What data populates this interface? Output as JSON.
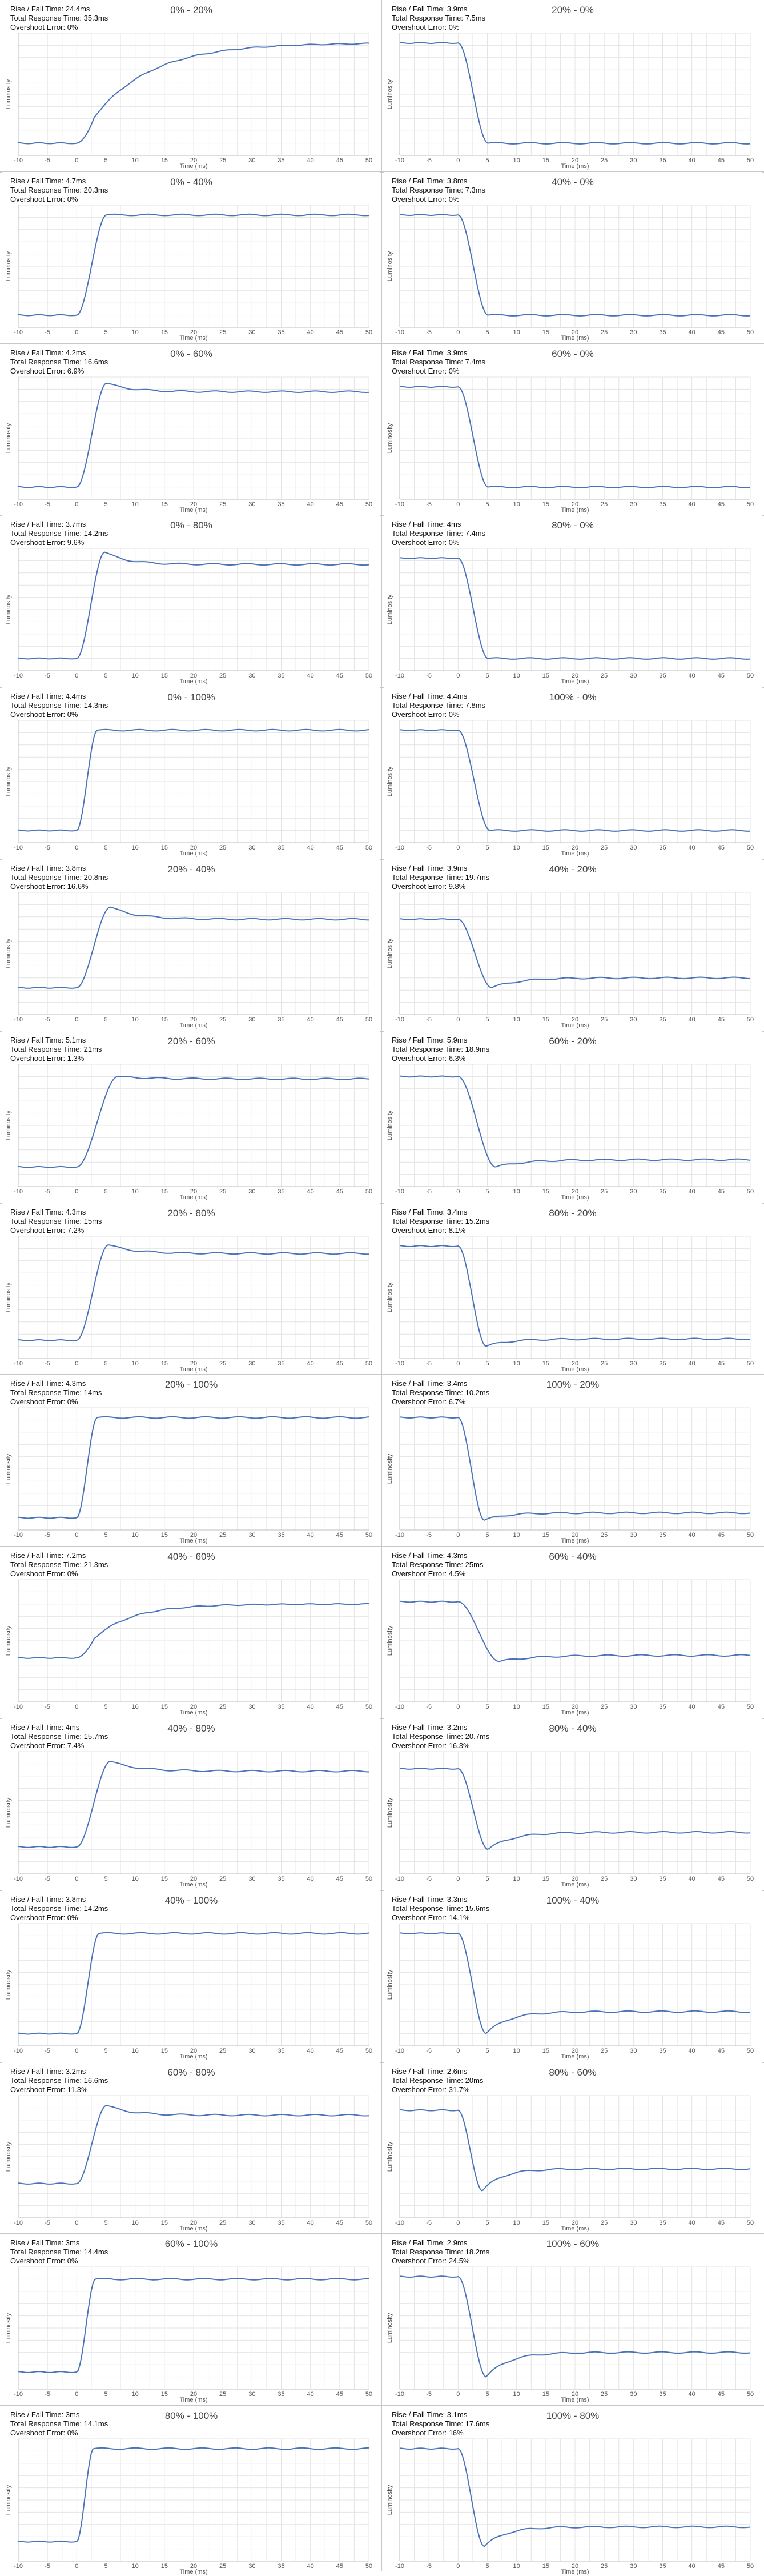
{
  "chart_data": [
    {
      "type": "line",
      "title": "0% - 20%",
      "rise_fall": "Rise / Fall Time: 24.4ms",
      "total": "Total Response Time: 35.3ms",
      "overshoot": "Overshoot Error: 0%",
      "xlabel": "Time (ms)",
      "ylabel": "Luminosity",
      "xlim": [
        -10,
        50
      ],
      "xticks": [
        -10,
        -5,
        0,
        5,
        10,
        15,
        20,
        25,
        30,
        35,
        40,
        45,
        50
      ],
      "ylim": [
        0,
        1
      ],
      "from": 0.1,
      "to": 0.92,
      "peak": 0.92,
      "shape": "slow",
      "tau": 4.5
    },
    {
      "type": "line",
      "title": "20% - 0%",
      "rise_fall": "Rise / Fall Time: 3.9ms",
      "total": "Total Response Time: 7.5ms",
      "overshoot": "Overshoot Error: 0%",
      "xlabel": "Time (ms)",
      "ylabel": "Luminosity",
      "xlim": [
        -10,
        50
      ],
      "xticks": [
        -10,
        -5,
        0,
        5,
        10,
        15,
        20,
        25,
        30,
        35,
        40,
        45,
        50
      ],
      "ylim": [
        0,
        1
      ],
      "from": 0.92,
      "to": 0.1,
      "peak": 0.1,
      "shape": "fall",
      "tau": 1.6
    },
    {
      "type": "line",
      "title": "0% - 40%",
      "rise_fall": "Rise / Fall Time: 4.7ms",
      "total": "Total Response Time: 20.3ms",
      "overshoot": "Overshoot Error: 0%",
      "xlabel": "Time (ms)",
      "ylabel": "Luminosity",
      "xlim": [
        -10,
        50
      ],
      "xticks": [
        -10,
        -5,
        0,
        5,
        10,
        15,
        20,
        25,
        30,
        35,
        40,
        45,
        50
      ],
      "ylim": [
        0,
        1
      ],
      "from": 0.1,
      "to": 0.92,
      "peak": 0.92,
      "shape": "rise",
      "tau": 1.6
    },
    {
      "type": "line",
      "title": "40% - 0%",
      "rise_fall": "Rise / Fall Time: 3.8ms",
      "total": "Total Response Time: 7.3ms",
      "overshoot": "Overshoot Error: 0%",
      "xlabel": "Time (ms)",
      "ylabel": "Luminosity",
      "xlim": [
        -10,
        50
      ],
      "xticks": [
        -10,
        -5,
        0,
        5,
        10,
        15,
        20,
        25,
        30,
        35,
        40,
        45,
        50
      ],
      "ylim": [
        0,
        1
      ],
      "from": 0.92,
      "to": 0.1,
      "peak": 0.1,
      "shape": "fall",
      "tau": 1.6
    },
    {
      "type": "line",
      "title": "0% - 60%",
      "rise_fall": "Rise / Fall Time: 4.2ms",
      "total": "Total Response Time: 16.6ms",
      "overshoot": "Overshoot Error: 6.9%",
      "xlabel": "Time (ms)",
      "ylabel": "Luminosity",
      "xlim": [
        -10,
        50
      ],
      "xticks": [
        -10,
        -5,
        0,
        5,
        10,
        15,
        20,
        25,
        30,
        35,
        40,
        45,
        50
      ],
      "ylim": [
        0,
        1
      ],
      "from": 0.1,
      "to": 0.88,
      "peak": 0.95,
      "shape": "rise",
      "tau": 1.6
    },
    {
      "type": "line",
      "title": "60% - 0%",
      "rise_fall": "Rise / Fall Time: 3.9ms",
      "total": "Total Response Time: 7.4ms",
      "overshoot": "Overshoot Error: 0%",
      "xlabel": "Time (ms)",
      "ylabel": "Luminosity",
      "xlim": [
        -10,
        50
      ],
      "xticks": [
        -10,
        -5,
        0,
        5,
        10,
        15,
        20,
        25,
        30,
        35,
        40,
        45,
        50
      ],
      "ylim": [
        0,
        1
      ],
      "from": 0.92,
      "to": 0.1,
      "peak": 0.1,
      "shape": "fall",
      "tau": 1.6
    },
    {
      "type": "line",
      "title": "0% - 80%",
      "rise_fall": "Rise / Fall Time: 3.7ms",
      "total": "Total Response Time: 14.2ms",
      "overshoot": "Overshoot Error: 9.6%",
      "xlabel": "Time (ms)",
      "ylabel": "Luminosity",
      "xlim": [
        -10,
        50
      ],
      "xticks": [
        -10,
        -5,
        0,
        5,
        10,
        15,
        20,
        25,
        30,
        35,
        40,
        45,
        50
      ],
      "ylim": [
        0,
        1
      ],
      "from": 0.1,
      "to": 0.87,
      "peak": 0.97,
      "shape": "rise",
      "tau": 1.5
    },
    {
      "type": "line",
      "title": "80% - 0%",
      "rise_fall": "Rise / Fall Time: 4ms",
      "total": "Total Response Time: 7.4ms",
      "overshoot": "Overshoot Error: 0%",
      "xlabel": "Time (ms)",
      "ylabel": "Luminosity",
      "xlim": [
        -10,
        50
      ],
      "xticks": [
        -10,
        -5,
        0,
        5,
        10,
        15,
        20,
        25,
        30,
        35,
        40,
        45,
        50
      ],
      "ylim": [
        0,
        1
      ],
      "from": 0.92,
      "to": 0.1,
      "peak": 0.1,
      "shape": "fall",
      "tau": 1.6
    },
    {
      "type": "line",
      "title": "0% - 100%",
      "rise_fall": "Rise / Fall Time: 4.4ms",
      "total": "Total Response Time: 14.3ms",
      "overshoot": "Overshoot Error: 0%",
      "xlabel": "Time (ms)",
      "ylabel": "Luminosity",
      "xlim": [
        -10,
        50
      ],
      "xticks": [
        -10,
        -5,
        0,
        5,
        10,
        15,
        20,
        25,
        30,
        35,
        40,
        45,
        50
      ],
      "ylim": [
        0,
        1
      ],
      "from": 0.1,
      "to": 0.92,
      "peak": 0.92,
      "shape": "rise",
      "tau": 1.1
    },
    {
      "type": "line",
      "title": "100% - 0%",
      "rise_fall": "Rise / Fall Time: 4.4ms",
      "total": "Total Response Time: 7.8ms",
      "overshoot": "Overshoot Error: 0%",
      "xlabel": "Time (ms)",
      "ylabel": "Luminosity",
      "xlim": [
        -10,
        50
      ],
      "xticks": [
        -10,
        -5,
        0,
        5,
        10,
        15,
        20,
        25,
        30,
        35,
        40,
        45,
        50
      ],
      "ylim": [
        0,
        1
      ],
      "from": 0.92,
      "to": 0.1,
      "peak": 0.1,
      "shape": "fall",
      "tau": 1.7
    },
    {
      "type": "line",
      "title": "20% - 40%",
      "rise_fall": "Rise / Fall Time: 3.8ms",
      "total": "Total Response Time: 20.8ms",
      "overshoot": "Overshoot Error: 16.6%",
      "xlabel": "Time (ms)",
      "ylabel": "Luminosity",
      "xlim": [
        -10,
        50
      ],
      "xticks": [
        -10,
        -5,
        0,
        5,
        10,
        15,
        20,
        25,
        30,
        35,
        40,
        45,
        50
      ],
      "ylim": [
        0,
        1
      ],
      "from": 0.22,
      "to": 0.78,
      "peak": 0.88,
      "shape": "rise",
      "tau": 1.8
    },
    {
      "type": "line",
      "title": "40% - 20%",
      "rise_fall": "Rise / Fall Time: 3.9ms",
      "total": "Total Response Time: 19.7ms",
      "overshoot": "Overshoot Error: 9.8%",
      "xlabel": "Time (ms)",
      "ylabel": "Luminosity",
      "xlim": [
        -10,
        50
      ],
      "xticks": [
        -10,
        -5,
        0,
        5,
        10,
        15,
        20,
        25,
        30,
        35,
        40,
        45,
        50
      ],
      "ylim": [
        0,
        1
      ],
      "from": 0.78,
      "to": 0.3,
      "peak": 0.22,
      "shape": "fall",
      "tau": 1.8
    },
    {
      "type": "line",
      "title": "20% - 60%",
      "rise_fall": "Rise / Fall Time: 5.1ms",
      "total": "Total Response Time: 21ms",
      "overshoot": "Overshoot Error: 1.3%",
      "xlabel": "Time (ms)",
      "ylabel": "Luminosity",
      "xlim": [
        -10,
        50
      ],
      "xticks": [
        -10,
        -5,
        0,
        5,
        10,
        15,
        20,
        25,
        30,
        35,
        40,
        45,
        50
      ],
      "ylim": [
        0,
        1
      ],
      "from": 0.16,
      "to": 0.88,
      "peak": 0.9,
      "shape": "rise",
      "tau": 2.2
    },
    {
      "type": "line",
      "title": "60% - 20%",
      "rise_fall": "Rise / Fall Time: 5.9ms",
      "total": "Total Response Time: 18.9ms",
      "overshoot": "Overshoot Error: 6.3%",
      "xlabel": "Time (ms)",
      "ylabel": "Luminosity",
      "xlim": [
        -10,
        50
      ],
      "xticks": [
        -10,
        -5,
        0,
        5,
        10,
        15,
        20,
        25,
        30,
        35,
        40,
        45,
        50
      ],
      "ylim": [
        0,
        1
      ],
      "from": 0.9,
      "to": 0.22,
      "peak": 0.16,
      "shape": "fall",
      "tau": 2.0
    },
    {
      "type": "line",
      "title": "20% - 80%",
      "rise_fall": "Rise / Fall Time: 4.3ms",
      "total": "Total Response Time: 15ms",
      "overshoot": "Overshoot Error: 7.2%",
      "xlabel": "Time (ms)",
      "ylabel": "Luminosity",
      "xlim": [
        -10,
        50
      ],
      "xticks": [
        -10,
        -5,
        0,
        5,
        10,
        15,
        20,
        25,
        30,
        35,
        40,
        45,
        50
      ],
      "ylim": [
        0,
        1
      ],
      "from": 0.15,
      "to": 0.86,
      "peak": 0.93,
      "shape": "rise",
      "tau": 1.7
    },
    {
      "type": "line",
      "title": "80% - 20%",
      "rise_fall": "Rise / Fall Time: 3.4ms",
      "total": "Total Response Time: 15.2ms",
      "overshoot": "Overshoot Error: 8.1%",
      "xlabel": "Time (ms)",
      "ylabel": "Luminosity",
      "xlim": [
        -10,
        50
      ],
      "xticks": [
        -10,
        -5,
        0,
        5,
        10,
        15,
        20,
        25,
        30,
        35,
        40,
        45,
        50
      ],
      "ylim": [
        0,
        1
      ],
      "from": 0.92,
      "to": 0.16,
      "peak": 0.1,
      "shape": "fall",
      "tau": 1.5
    },
    {
      "type": "line",
      "title": "20% - 100%",
      "rise_fall": "Rise / Fall Time: 4.3ms",
      "total": "Total Response Time: 14ms",
      "overshoot": "Overshoot Error: 0%",
      "xlabel": "Time (ms)",
      "ylabel": "Luminosity",
      "xlim": [
        -10,
        50
      ],
      "xticks": [
        -10,
        -5,
        0,
        5,
        10,
        15,
        20,
        25,
        30,
        35,
        40,
        45,
        50
      ],
      "ylim": [
        0,
        1
      ],
      "from": 0.1,
      "to": 0.92,
      "peak": 0.92,
      "shape": "rise",
      "tau": 1.1
    },
    {
      "type": "line",
      "title": "100% - 20%",
      "rise_fall": "Rise / Fall Time: 3.4ms",
      "total": "Total Response Time: 10.2ms",
      "overshoot": "Overshoot Error: 6.7%",
      "xlabel": "Time (ms)",
      "ylabel": "Luminosity",
      "xlim": [
        -10,
        50
      ],
      "xticks": [
        -10,
        -5,
        0,
        5,
        10,
        15,
        20,
        25,
        30,
        35,
        40,
        45,
        50
      ],
      "ylim": [
        0,
        1
      ],
      "from": 0.92,
      "to": 0.14,
      "peak": 0.08,
      "shape": "fall",
      "tau": 1.4
    },
    {
      "type": "line",
      "title": "40% - 60%",
      "rise_fall": "Rise / Fall Time: 7.2ms",
      "total": "Total Response Time: 21.3ms",
      "overshoot": "Overshoot Error: 0%",
      "xlabel": "Time (ms)",
      "ylabel": "Luminosity",
      "xlim": [
        -10,
        50
      ],
      "xticks": [
        -10,
        -5,
        0,
        5,
        10,
        15,
        20,
        25,
        30,
        35,
        40,
        45,
        50
      ],
      "ylim": [
        0,
        1
      ],
      "from": 0.36,
      "to": 0.8,
      "peak": 0.8,
      "shape": "slow",
      "tau": 3.0
    },
    {
      "type": "line",
      "title": "60% - 40%",
      "rise_fall": "Rise / Fall Time: 4.3ms",
      "total": "Total Response Time: 25ms",
      "overshoot": "Overshoot Error: 4.5%",
      "xlabel": "Time (ms)",
      "ylabel": "Luminosity",
      "xlim": [
        -10,
        50
      ],
      "xticks": [
        -10,
        -5,
        0,
        5,
        10,
        15,
        20,
        25,
        30,
        35,
        40,
        45,
        50
      ],
      "ylim": [
        0,
        1
      ],
      "from": 0.82,
      "to": 0.38,
      "peak": 0.33,
      "shape": "fall",
      "tau": 2.2
    },
    {
      "type": "line",
      "title": "40% - 80%",
      "rise_fall": "Rise / Fall Time: 4ms",
      "total": "Total Response Time: 15.7ms",
      "overshoot": "Overshoot Error: 7.4%",
      "xlabel": "Time (ms)",
      "ylabel": "Luminosity",
      "xlim": [
        -10,
        50
      ],
      "xticks": [
        -10,
        -5,
        0,
        5,
        10,
        15,
        20,
        25,
        30,
        35,
        40,
        45,
        50
      ],
      "ylim": [
        0,
        1
      ],
      "from": 0.22,
      "to": 0.84,
      "peak": 0.92,
      "shape": "rise",
      "tau": 1.8
    },
    {
      "type": "line",
      "title": "80% - 40%",
      "rise_fall": "Rise / Fall Time: 3.2ms",
      "total": "Total Response Time: 20.7ms",
      "overshoot": "Overshoot Error: 16.3%",
      "xlabel": "Time (ms)",
      "ylabel": "Luminosity",
      "xlim": [
        -10,
        50
      ],
      "xticks": [
        -10,
        -5,
        0,
        5,
        10,
        15,
        20,
        25,
        30,
        35,
        40,
        45,
        50
      ],
      "ylim": [
        0,
        1
      ],
      "from": 0.86,
      "to": 0.34,
      "peak": 0.2,
      "shape": "fall",
      "tau": 1.6
    },
    {
      "type": "line",
      "title": "40% - 100%",
      "rise_fall": "Rise / Fall Time: 3.8ms",
      "total": "Total Response Time: 14.2ms",
      "overshoot": "Overshoot Error: 0%",
      "xlabel": "Time (ms)",
      "ylabel": "Luminosity",
      "xlim": [
        -10,
        50
      ],
      "xticks": [
        -10,
        -5,
        0,
        5,
        10,
        15,
        20,
        25,
        30,
        35,
        40,
        45,
        50
      ],
      "ylim": [
        0,
        1
      ],
      "from": 0.1,
      "to": 0.92,
      "peak": 0.92,
      "shape": "rise",
      "tau": 1.2
    },
    {
      "type": "line",
      "title": "100% - 40%",
      "rise_fall": "Rise / Fall Time: 3.3ms",
      "total": "Total Response Time: 15.6ms",
      "overshoot": "Overshoot Error: 14.1%",
      "xlabel": "Time (ms)",
      "ylabel": "Luminosity",
      "xlim": [
        -10,
        50
      ],
      "xticks": [
        -10,
        -5,
        0,
        5,
        10,
        15,
        20,
        25,
        30,
        35,
        40,
        45,
        50
      ],
      "ylim": [
        0,
        1
      ],
      "from": 0.92,
      "to": 0.28,
      "peak": 0.1,
      "shape": "fall",
      "tau": 1.5
    },
    {
      "type": "line",
      "title": "60% - 80%",
      "rise_fall": "Rise / Fall Time: 3.2ms",
      "total": "Total Response Time: 16.6ms",
      "overshoot": "Overshoot Error: 11.3%",
      "xlabel": "Time (ms)",
      "ylabel": "Luminosity",
      "xlim": [
        -10,
        50
      ],
      "xticks": [
        -10,
        -5,
        0,
        5,
        10,
        15,
        20,
        25,
        30,
        35,
        40,
        45,
        50
      ],
      "ylim": [
        0,
        1
      ],
      "from": 0.28,
      "to": 0.84,
      "peak": 0.92,
      "shape": "rise",
      "tau": 1.6
    },
    {
      "type": "line",
      "title": "80% - 60%",
      "rise_fall": "Rise / Fall Time: 2.6ms",
      "total": "Total Response Time: 20ms",
      "overshoot": "Overshoot Error: 31.7%",
      "xlabel": "Time (ms)",
      "ylabel": "Luminosity",
      "xlim": [
        -10,
        50
      ],
      "xticks": [
        -10,
        -5,
        0,
        5,
        10,
        15,
        20,
        25,
        30,
        35,
        40,
        45,
        50
      ],
      "ylim": [
        0,
        1
      ],
      "from": 0.88,
      "to": 0.4,
      "peak": 0.22,
      "shape": "fall",
      "tau": 1.3
    },
    {
      "type": "line",
      "title": "60% - 100%",
      "rise_fall": "Rise / Fall Time: 3ms",
      "total": "Total Response Time: 14.4ms",
      "overshoot": "Overshoot Error: 0%",
      "xlabel": "Time (ms)",
      "ylabel": "Luminosity",
      "xlim": [
        -10,
        50
      ],
      "xticks": [
        -10,
        -5,
        0,
        5,
        10,
        15,
        20,
        25,
        30,
        35,
        40,
        45,
        50
      ],
      "ylim": [
        0,
        1
      ],
      "from": 0.14,
      "to": 0.9,
      "peak": 0.9,
      "shape": "rise",
      "tau": 1.0
    },
    {
      "type": "line",
      "title": "100% - 60%",
      "rise_fall": "Rise / Fall Time: 2.9ms",
      "total": "Total Response Time: 18.2ms",
      "overshoot": "Overshoot Error: 24.5%",
      "xlabel": "Time (ms)",
      "ylabel": "Luminosity",
      "xlim": [
        -10,
        50
      ],
      "xticks": [
        -10,
        -5,
        0,
        5,
        10,
        15,
        20,
        25,
        30,
        35,
        40,
        45,
        50
      ],
      "ylim": [
        0,
        1
      ],
      "from": 0.92,
      "to": 0.3,
      "peak": 0.1,
      "shape": "fall",
      "tau": 1.5
    },
    {
      "type": "line",
      "title": "80% - 100%",
      "rise_fall": "Rise / Fall Time: 3ms",
      "total": "Total Response Time: 14.1ms",
      "overshoot": "Overshoot Error: 0%",
      "xlabel": "Time (ms)",
      "ylabel": "Luminosity",
      "xlim": [
        -10,
        50
      ],
      "xticks": [
        -10,
        -5,
        0,
        5,
        10,
        15,
        20,
        25,
        30,
        35,
        40,
        45,
        50
      ],
      "ylim": [
        0,
        1
      ],
      "from": 0.16,
      "to": 0.92,
      "peak": 0.92,
      "shape": "rise",
      "tau": 0.9
    },
    {
      "type": "line",
      "title": "100% - 80%",
      "rise_fall": "Rise / Fall Time: 3.1ms",
      "total": "Total Response Time: 17.6ms",
      "overshoot": "Overshoot Error: 16%",
      "xlabel": "Time (ms)",
      "ylabel": "Luminosity",
      "xlim": [
        -10,
        50
      ],
      "xticks": [
        -10,
        -5,
        0,
        5,
        10,
        15,
        20,
        25,
        30,
        35,
        40,
        45,
        50
      ],
      "ylim": [
        0,
        1
      ],
      "from": 0.92,
      "to": 0.28,
      "peak": 0.12,
      "shape": "fall",
      "tau": 1.4
    }
  ],
  "colors": {
    "line": "#4a72b8",
    "grid": "#e4e4e4",
    "axis": "#bdbdbd",
    "divider": "#c8c8c8"
  }
}
